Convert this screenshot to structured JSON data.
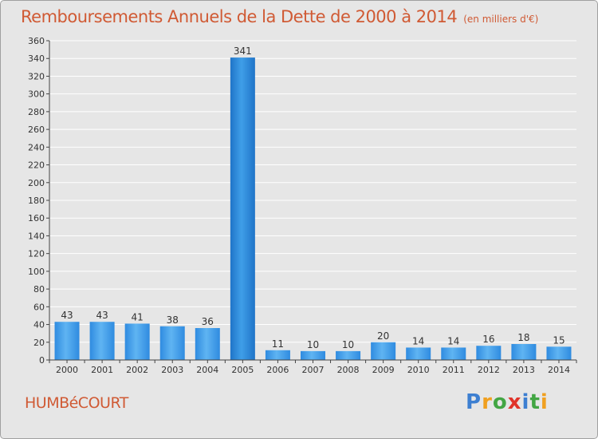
{
  "title": "Remboursements Annuels de la Dette de 2000 à 2014",
  "unit_label": "(en milliers d'€)",
  "commune": "HUMBéCOURT",
  "logo": {
    "text": "Proxiti",
    "letters": [
      "P",
      "r",
      "o",
      "x",
      "i",
      "t",
      "i"
    ]
  },
  "colors": {
    "background": "#e6e6e6",
    "title": "#d05a34",
    "bar": "#4aa3e8",
    "bar_highlight": "#2a86d8",
    "grid": "#ffffff"
  },
  "chart_data": {
    "type": "bar",
    "title": "Remboursements Annuels de la Dette de 2000 à 2014",
    "subtitle": "(en milliers d'€)",
    "xlabel": "",
    "ylabel": "",
    "categories": [
      "2000",
      "2001",
      "2002",
      "2003",
      "2004",
      "2005",
      "2006",
      "2007",
      "2008",
      "2009",
      "2010",
      "2011",
      "2012",
      "2013",
      "2014"
    ],
    "values": [
      43,
      43,
      41,
      38,
      36,
      341,
      11,
      10,
      10,
      20,
      14,
      14,
      16,
      18,
      15
    ],
    "ylim": [
      0,
      360
    ],
    "yticks": [
      0,
      20,
      40,
      60,
      80,
      100,
      120,
      140,
      160,
      180,
      200,
      220,
      240,
      260,
      280,
      300,
      320,
      340,
      360
    ],
    "grid": true,
    "data_labels": true
  }
}
